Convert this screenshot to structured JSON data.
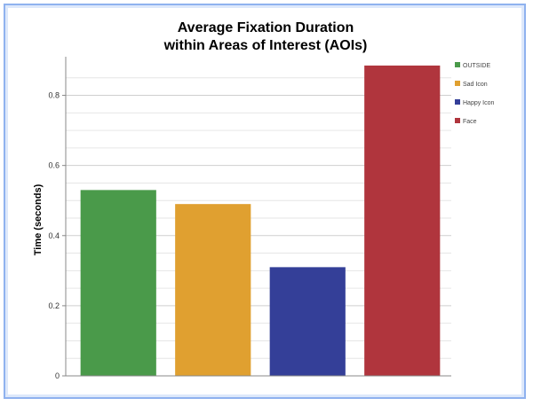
{
  "chart_data": {
    "type": "bar",
    "title": [
      "Average Fixation Duration",
      "within Areas of Interest (AOIs)"
    ],
    "xlabel": "",
    "ylabel": "Time (seconds)",
    "ylim": [
      0,
      0.9
    ],
    "yticks": [
      0,
      0.2,
      0.4,
      0.6,
      0.8
    ],
    "ytick_labels": [
      "0",
      "0.2",
      "0.4",
      "0.6",
      "0.8"
    ],
    "grid": true,
    "legend_position": "right",
    "series": [
      {
        "name": "OUTSIDE",
        "value": 0.53,
        "color": "#4a9a4a"
      },
      {
        "name": "Sad Icon",
        "value": 0.49,
        "color": "#e0a030"
      },
      {
        "name": "Happy Icon",
        "value": 0.31,
        "color": "#343f98"
      },
      {
        "name": "Face",
        "value": 0.885,
        "color": "#b0353d"
      }
    ]
  }
}
